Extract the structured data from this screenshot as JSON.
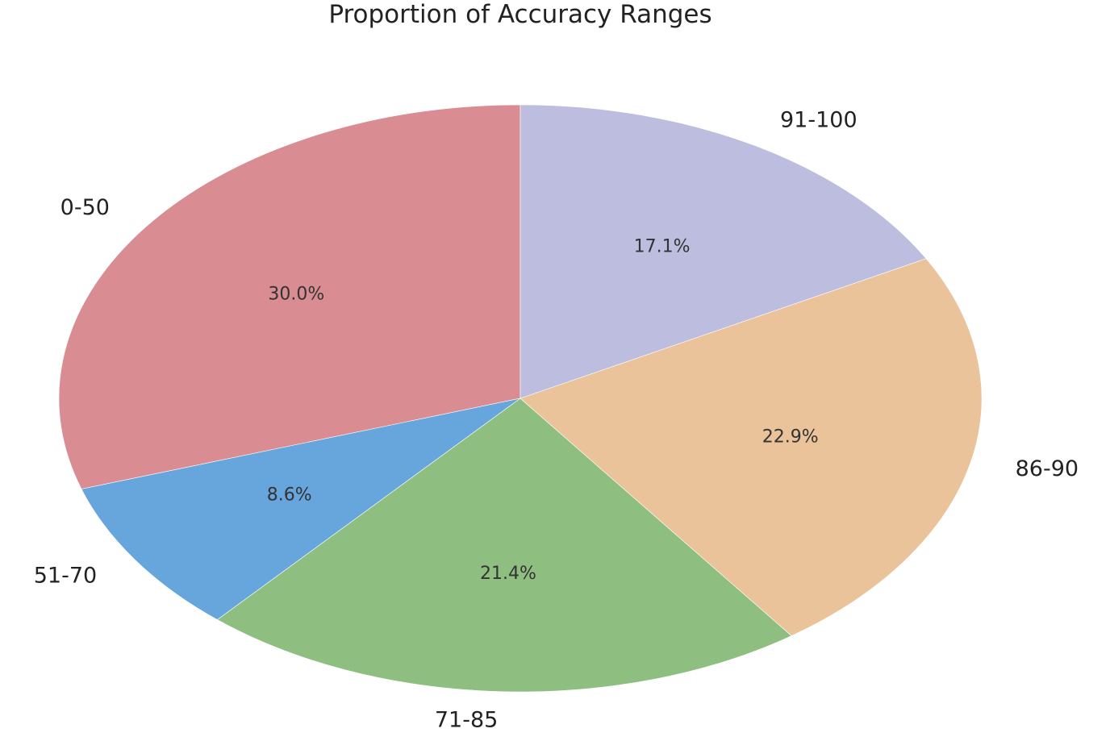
{
  "chart_data": {
    "type": "pie",
    "title": "Proportion of Accuracy Ranges",
    "categories": [
      "0-50",
      "51-70",
      "71-85",
      "86-90",
      "91-100"
    ],
    "values": [
      30.0,
      8.6,
      21.4,
      22.9,
      17.1
    ],
    "value_labels": [
      "30.0%",
      "8.6%",
      "21.4%",
      "22.9%",
      "17.1%"
    ],
    "colors": [
      "#d98c91",
      "#66a6dc",
      "#8fbf80",
      "#ebc39a",
      "#bdbddf"
    ],
    "start_angle_deg": 90,
    "direction": "counterclockwise",
    "legend": "none"
  }
}
